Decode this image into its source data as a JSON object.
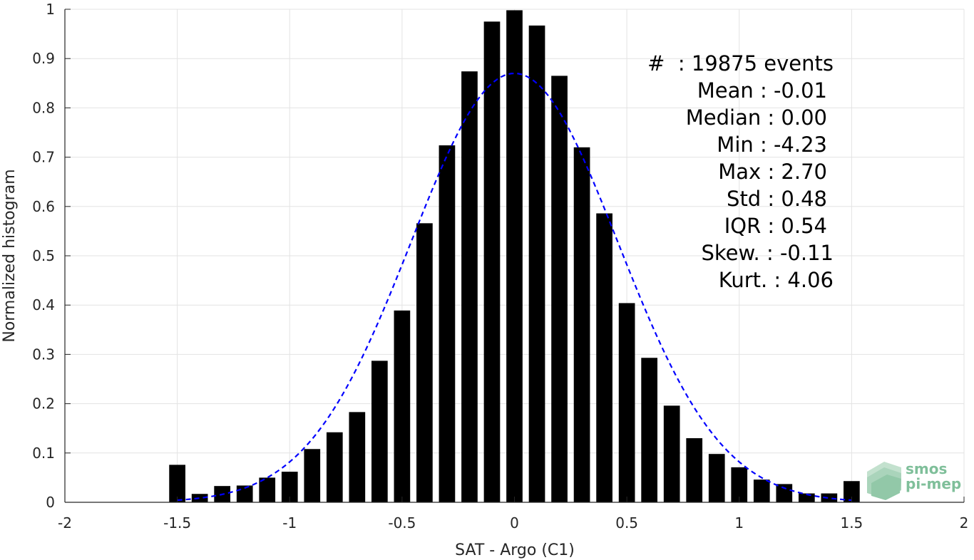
{
  "chart_data": {
    "type": "bar",
    "xlabel": "SAT - Argo (C1)",
    "ylabel": "Normalized histogram",
    "xlim": [
      -2,
      2
    ],
    "ylim": [
      0,
      1
    ],
    "xticks": [
      -2,
      -1.5,
      -1,
      -0.5,
      0,
      0.5,
      1,
      1.5,
      2
    ],
    "xtick_labels": [
      "-2",
      "-1.5",
      "-1",
      "-0.5",
      "0",
      "0.5",
      "1",
      "1.5",
      "2"
    ],
    "yticks": [
      0,
      0.1,
      0.2,
      0.3,
      0.4,
      0.5,
      0.6,
      0.7,
      0.8,
      0.9,
      1
    ],
    "ytick_labels": [
      "0",
      "0.1",
      "0.2",
      "0.3",
      "0.4",
      "0.5",
      "0.6",
      "0.7",
      "0.8",
      "0.9",
      "1"
    ],
    "grid": true,
    "bar_color": "#000000",
    "bin_width": 0.1,
    "x": [
      -1.5,
      -1.4,
      -1.3,
      -1.2,
      -1.1,
      -1.0,
      -0.9,
      -0.8,
      -0.7,
      -0.6,
      -0.5,
      -0.4,
      -0.3,
      -0.2,
      -0.1,
      0.0,
      0.1,
      0.2,
      0.3,
      0.4,
      0.5,
      0.6,
      0.7,
      0.8,
      0.9,
      1.0,
      1.1,
      1.2,
      1.3,
      1.4,
      1.5
    ],
    "values": [
      0.076,
      0.017,
      0.033,
      0.034,
      0.05,
      0.062,
      0.108,
      0.142,
      0.183,
      0.287,
      0.389,
      0.566,
      0.724,
      0.874,
      0.975,
      0.998,
      0.967,
      0.865,
      0.72,
      0.586,
      0.404,
      0.293,
      0.196,
      0.13,
      0.098,
      0.071,
      0.046,
      0.037,
      0.018,
      0.018,
      0.043
    ],
    "fit_curve": {
      "style": "dashed",
      "color": "#0000ff",
      "mean": 0,
      "sigma": 0.46,
      "peak": 0.87,
      "x_range": [
        -1.5,
        1.5
      ]
    },
    "stats_lines": [
      "#  : 19875 events",
      "Mean : -0.01",
      "Median : 0.00",
      "Min : -4.23",
      "Max : 2.70",
      "Std : 0.48",
      "IQR : 0.54",
      "Skew. : -0.11",
      "Kurt. : 4.06"
    ]
  },
  "logo": {
    "line1": "smos",
    "line2": "pi-mep",
    "color": "#7fbf9a"
  }
}
